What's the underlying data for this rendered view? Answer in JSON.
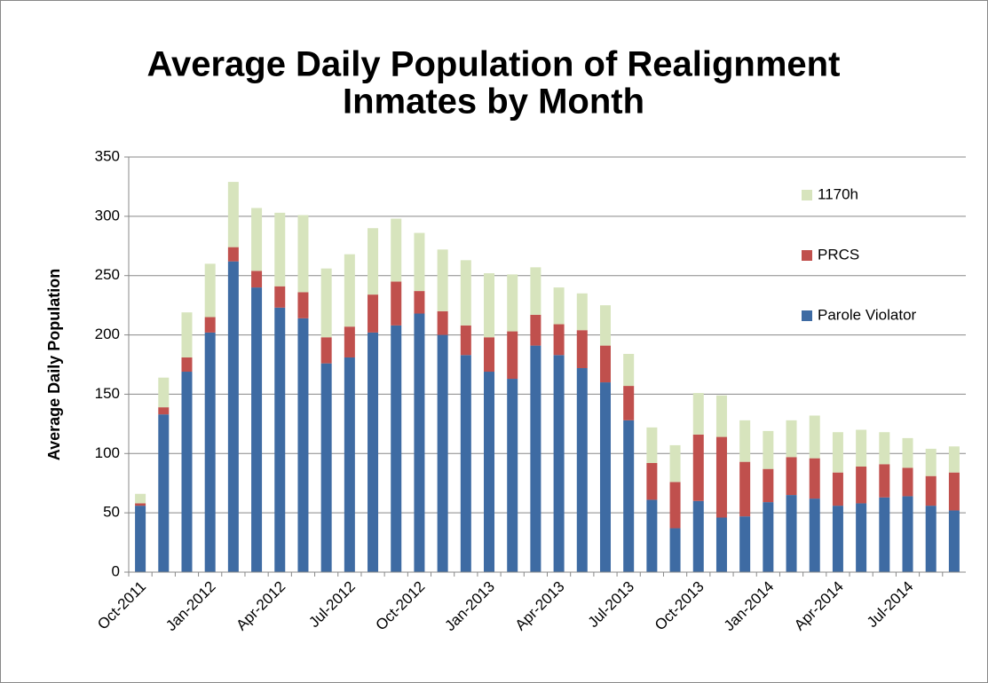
{
  "chart_data": {
    "type": "bar",
    "stacked": true,
    "title": "Average Daily Population of Realignment Inmates by Month",
    "y_label": "Average Daily Population",
    "categories": [
      "Oct-2011",
      null,
      null,
      "Jan-2012",
      null,
      null,
      "Apr-2012",
      null,
      null,
      "Jul-2012",
      null,
      null,
      "Oct-2012",
      null,
      null,
      "Jan-2013",
      null,
      null,
      "Apr-2013",
      null,
      null,
      "Jul-2013",
      null,
      null,
      "Oct-2013",
      null,
      null,
      "Jan-2014",
      null,
      null,
      "Apr-2014",
      null,
      null,
      "Jul-2014",
      null,
      null
    ],
    "series": [
      {
        "name": "Parole Violator",
        "color": "#3e6ba3",
        "values": [
          56,
          133,
          169,
          202,
          262,
          240,
          223,
          214,
          176,
          181,
          202,
          208,
          218,
          200,
          183,
          169,
          163,
          191,
          183,
          172,
          160,
          128,
          61,
          37,
          60,
          46,
          47,
          59,
          65,
          62,
          56,
          58,
          63,
          64,
          56,
          52
        ]
      },
      {
        "name": "PRCS",
        "color": "#c0504d",
        "values": [
          2,
          6,
          12,
          13,
          12,
          14,
          18,
          22,
          22,
          26,
          32,
          37,
          19,
          20,
          25,
          29,
          40,
          26,
          26,
          32,
          31,
          29,
          31,
          39,
          56,
          68,
          46,
          28,
          32,
          34,
          28,
          31,
          28,
          24,
          25,
          32
        ]
      },
      {
        "name": "1170h",
        "color": "#d7e4bd",
        "values": [
          8,
          25,
          38,
          45,
          55,
          53,
          62,
          65,
          58,
          61,
          56,
          53,
          49,
          52,
          55,
          54,
          48,
          40,
          31,
          31,
          34,
          27,
          30,
          31,
          35,
          35,
          35,
          32,
          31,
          36,
          34,
          31,
          27,
          25,
          23,
          22
        ]
      }
    ],
    "ylim": [
      0,
      350
    ],
    "yticks": [
      0,
      50,
      100,
      150,
      200,
      250,
      300,
      350
    ],
    "grid": true,
    "legend": "right"
  }
}
